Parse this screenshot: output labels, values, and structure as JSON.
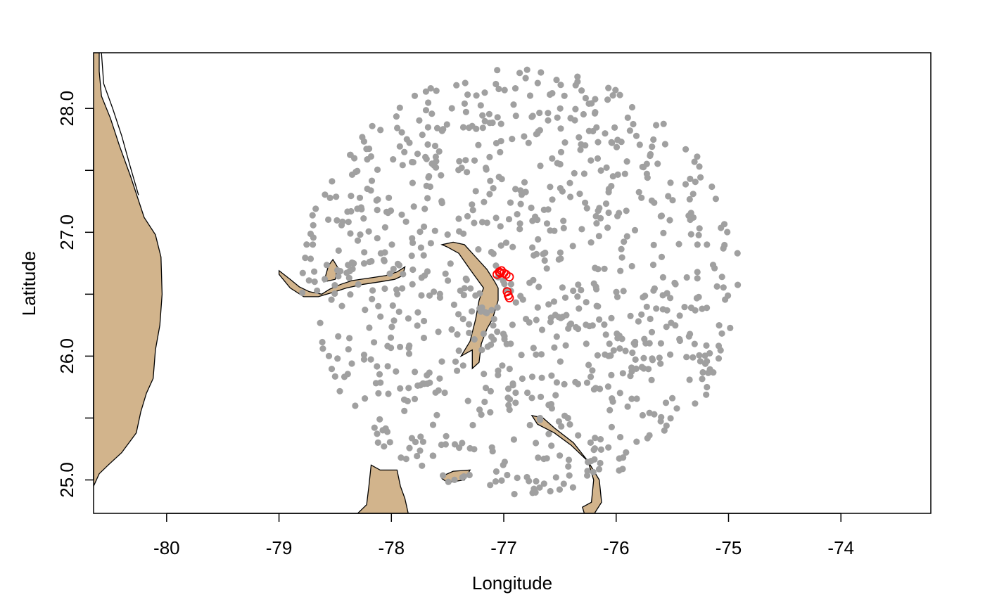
{
  "chart_data": {
    "type": "scatter",
    "title": "",
    "xlabel": "Longitude",
    "ylabel": "Latitude",
    "xlim": [
      -80.65,
      -73.2
    ],
    "ylim": [
      24.73,
      28.45
    ],
    "x_ticks": [
      -80,
      -79,
      -78,
      -77,
      -76,
      -75,
      -74
    ],
    "x_tick_labels": [
      "-80",
      "-79",
      "-78",
      "-77",
      "-76",
      "-75",
      "-74"
    ],
    "y_ticks": [
      25.0,
      26.0,
      27.0,
      28.0
    ],
    "y_tick_labels": [
      "25.0",
      "26.0",
      "27.0",
      "28.0"
    ],
    "grid": false,
    "land_color": "#d2b48c",
    "series": [
      {
        "marker": "filled-circle",
        "color": "#a0a0a0",
        "description_of_extent": "approx. 900 locations spread over roughly lon -78.8 to -75.0, lat 24.9 to 28.3",
        "region": {
          "center": [
            -76.85,
            26.6
          ],
          "radius_lon": 1.95,
          "radius_lat": 1.72
        },
        "count": 900
      },
      {
        "marker": "open-circle",
        "color": "#ff0000",
        "points": [
          [
            -77.06,
            26.66
          ],
          [
            -77.04,
            26.68
          ],
          [
            -77.02,
            26.69
          ],
          [
            -77.0,
            26.67
          ],
          [
            -76.98,
            26.66
          ],
          [
            -76.95,
            26.64
          ],
          [
            -77.03,
            26.67
          ],
          [
            -76.97,
            26.52
          ],
          [
            -76.96,
            26.49
          ],
          [
            -76.95,
            26.47
          ]
        ]
      }
    ]
  }
}
